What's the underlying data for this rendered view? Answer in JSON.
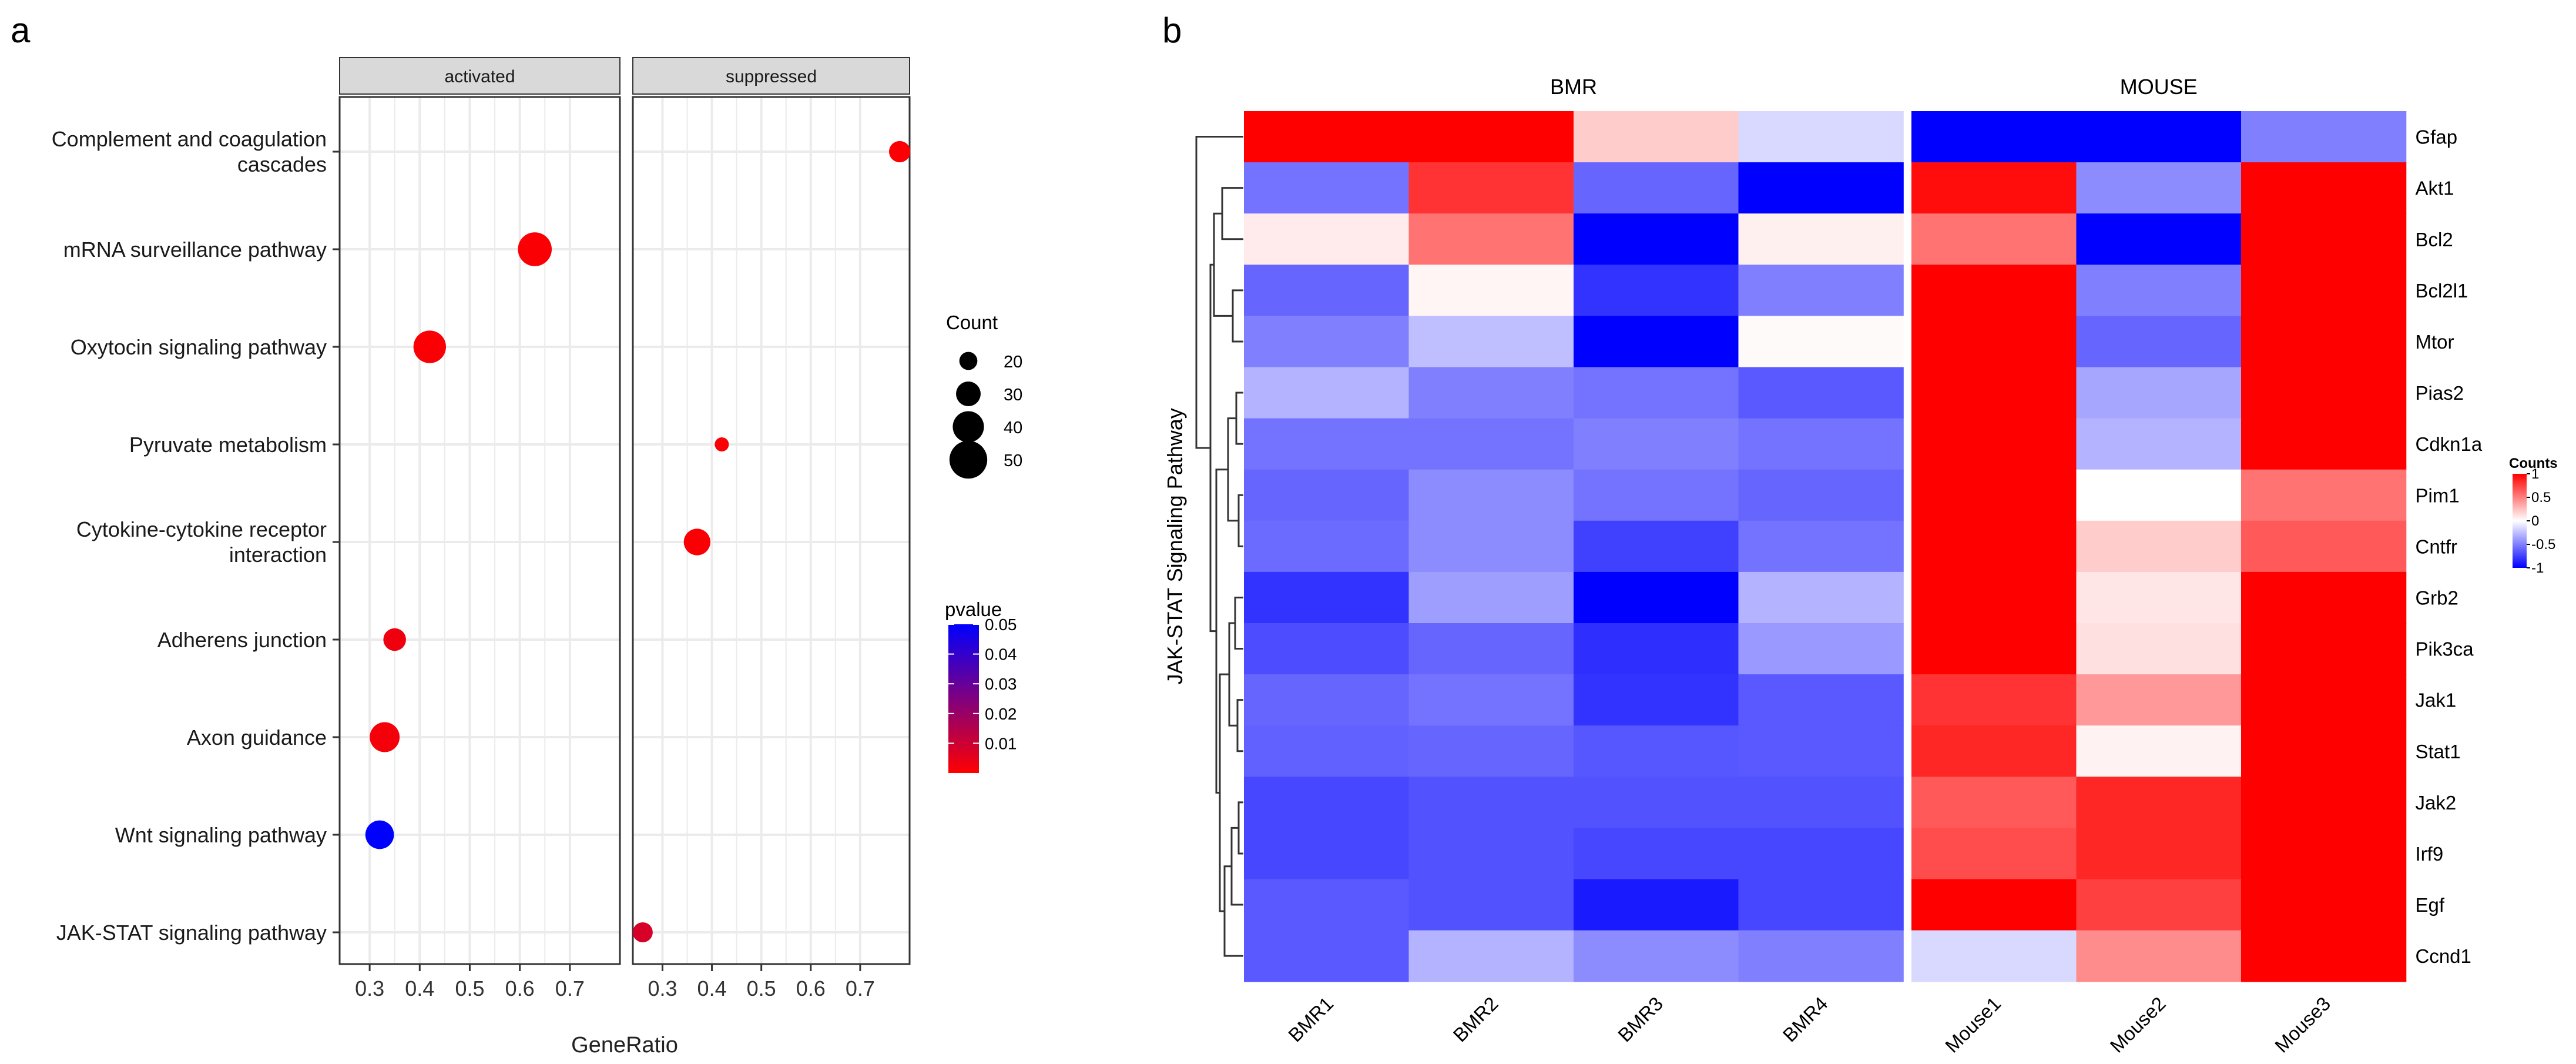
{
  "colors": {
    "hm_low": "#0000ff",
    "hm_mid": "#ffffff",
    "hm_high": "#ff0000",
    "pv_low": "#ff0000",
    "pv_high": "#0000ff",
    "strip_bg": "#d9d9d9",
    "grid": "#ebebeb"
  },
  "chart_data": [
    {
      "type": "scatter",
      "panel_letter": "a",
      "xlabel": "GeneRatio",
      "facets": [
        {
          "label": "activated",
          "xlim": [
            0.24,
            0.8
          ],
          "ticks": [
            0.3,
            0.4,
            0.5,
            0.6,
            0.7
          ],
          "tick_labels": [
            "0.3",
            "0.4",
            "0.5",
            "0.6",
            "0.7"
          ]
        },
        {
          "label": "suppressed",
          "xlim": [
            0.24,
            0.8
          ],
          "ticks": [
            0.3,
            0.4,
            0.5,
            0.6,
            0.7
          ],
          "tick_labels": [
            "0.3",
            "0.4",
            "0.5",
            "0.6",
            "0.7"
          ]
        }
      ],
      "pathways": [
        "Complement and coagulation|cascades",
        "mRNA surveillance pathway",
        "Oxytocin signaling pathway",
        "Pyruvate metabolism",
        "Cytokine-cytokine receptor|interaction",
        "Adherens junction",
        "Axon guidance",
        "Wnt signaling pathway",
        "JAK-STAT signaling pathway"
      ],
      "points": [
        {
          "pathway": 0,
          "facet": 1,
          "x": 0.78,
          "count": 25,
          "pvalue": 0.001
        },
        {
          "pathway": 1,
          "facet": 0,
          "x": 0.63,
          "count": 44,
          "pvalue": 0.001
        },
        {
          "pathway": 2,
          "facet": 0,
          "x": 0.42,
          "count": 42,
          "pvalue": 0.001
        },
        {
          "pathway": 3,
          "facet": 1,
          "x": 0.42,
          "count": 14,
          "pvalue": 0.001
        },
        {
          "pathway": 4,
          "facet": 1,
          "x": 0.37,
          "count": 33,
          "pvalue": 0.001
        },
        {
          "pathway": 5,
          "facet": 0,
          "x": 0.35,
          "count": 27,
          "pvalue": 0.003
        },
        {
          "pathway": 6,
          "facet": 0,
          "x": 0.33,
          "count": 38,
          "pvalue": 0.002
        },
        {
          "pathway": 7,
          "facet": 0,
          "x": 0.32,
          "count": 36,
          "pvalue": 0.05
        },
        {
          "pathway": 8,
          "facet": 1,
          "x": 0.26,
          "count": 23,
          "pvalue": 0.008
        }
      ],
      "size_legend": {
        "title": "Count",
        "values": [
          20,
          30,
          40,
          50
        ],
        "labels": [
          "20",
          "30",
          "40",
          "50"
        ]
      },
      "color_legend": {
        "title": "pvalue",
        "range": [
          0.0,
          0.05
        ],
        "ticks": [
          0.05,
          0.04,
          0.03,
          0.02,
          0.01
        ],
        "tick_labels": [
          "0.05",
          "0.04",
          "0.03",
          "0.02",
          "0.01"
        ]
      }
    },
    {
      "type": "heatmap",
      "panel_letter": "b",
      "ylabel": "JAK-STAT Signaling Pathway",
      "groups": [
        {
          "label": "BMR",
          "columns": [
            0,
            1,
            2,
            3
          ]
        },
        {
          "label": "MOUSE",
          "columns": [
            4,
            5,
            6
          ]
        }
      ],
      "columns": [
        "BMR1",
        "BMR2",
        "BMR3",
        "BMR4",
        "Mouse1",
        "Mouse2",
        "Mouse3"
      ],
      "rows": [
        "Gfap",
        "Akt1",
        "Bcl2",
        "Bcl2l1",
        "Mtor",
        "Pias2",
        "Cdkn1a",
        "Pim1",
        "Cntfr",
        "Grb2",
        "Pik3ca",
        "Jak1",
        "Stat1",
        "Jak2",
        "Irf9",
        "Egf",
        "Ccnd1"
      ],
      "values": [
        [
          1.0,
          1.0,
          0.2,
          -0.15,
          -1.0,
          -1.0,
          -0.5
        ],
        [
          -0.55,
          0.8,
          -0.6,
          -1.0,
          0.95,
          -0.45,
          1.0
        ],
        [
          0.08,
          0.55,
          -1.0,
          0.06,
          0.55,
          -1.0,
          1.0
        ],
        [
          -0.6,
          0.04,
          -0.8,
          -0.5,
          1.0,
          -0.5,
          1.0
        ],
        [
          -0.5,
          -0.25,
          -1.0,
          0.02,
          1.0,
          -0.6,
          1.0
        ],
        [
          -0.3,
          -0.5,
          -0.55,
          -0.65,
          1.0,
          -0.35,
          1.0
        ],
        [
          -0.55,
          -0.55,
          -0.5,
          -0.55,
          1.0,
          -0.3,
          1.0
        ],
        [
          -0.6,
          -0.45,
          -0.55,
          -0.6,
          1.0,
          0.0,
          0.55
        ],
        [
          -0.58,
          -0.45,
          -0.75,
          -0.55,
          1.0,
          0.2,
          0.65
        ],
        [
          -0.8,
          -0.38,
          -1.0,
          -0.3,
          1.0,
          0.1,
          1.0
        ],
        [
          -0.7,
          -0.6,
          -0.82,
          -0.4,
          1.0,
          0.12,
          1.0
        ],
        [
          -0.6,
          -0.55,
          -0.8,
          -0.65,
          0.8,
          0.4,
          1.0
        ],
        [
          -0.62,
          -0.6,
          -0.66,
          -0.65,
          0.85,
          0.05,
          1.0
        ],
        [
          -0.72,
          -0.68,
          -0.68,
          -0.68,
          0.65,
          0.85,
          1.0
        ],
        [
          -0.72,
          -0.68,
          -0.72,
          -0.72,
          0.7,
          0.85,
          1.0
        ],
        [
          -0.65,
          -0.68,
          -0.9,
          -0.72,
          1.0,
          0.75,
          1.0
        ],
        [
          -0.65,
          -0.3,
          -0.45,
          -0.5,
          -0.15,
          0.45,
          1.0
        ]
      ],
      "legend": {
        "title": "Counts",
        "range": [
          -1,
          1
        ],
        "ticks": [
          1,
          0.5,
          0,
          -0.5,
          -1
        ],
        "tick_labels": [
          "1",
          "0.5",
          "0",
          "-0.5",
          "-1"
        ]
      }
    }
  ]
}
